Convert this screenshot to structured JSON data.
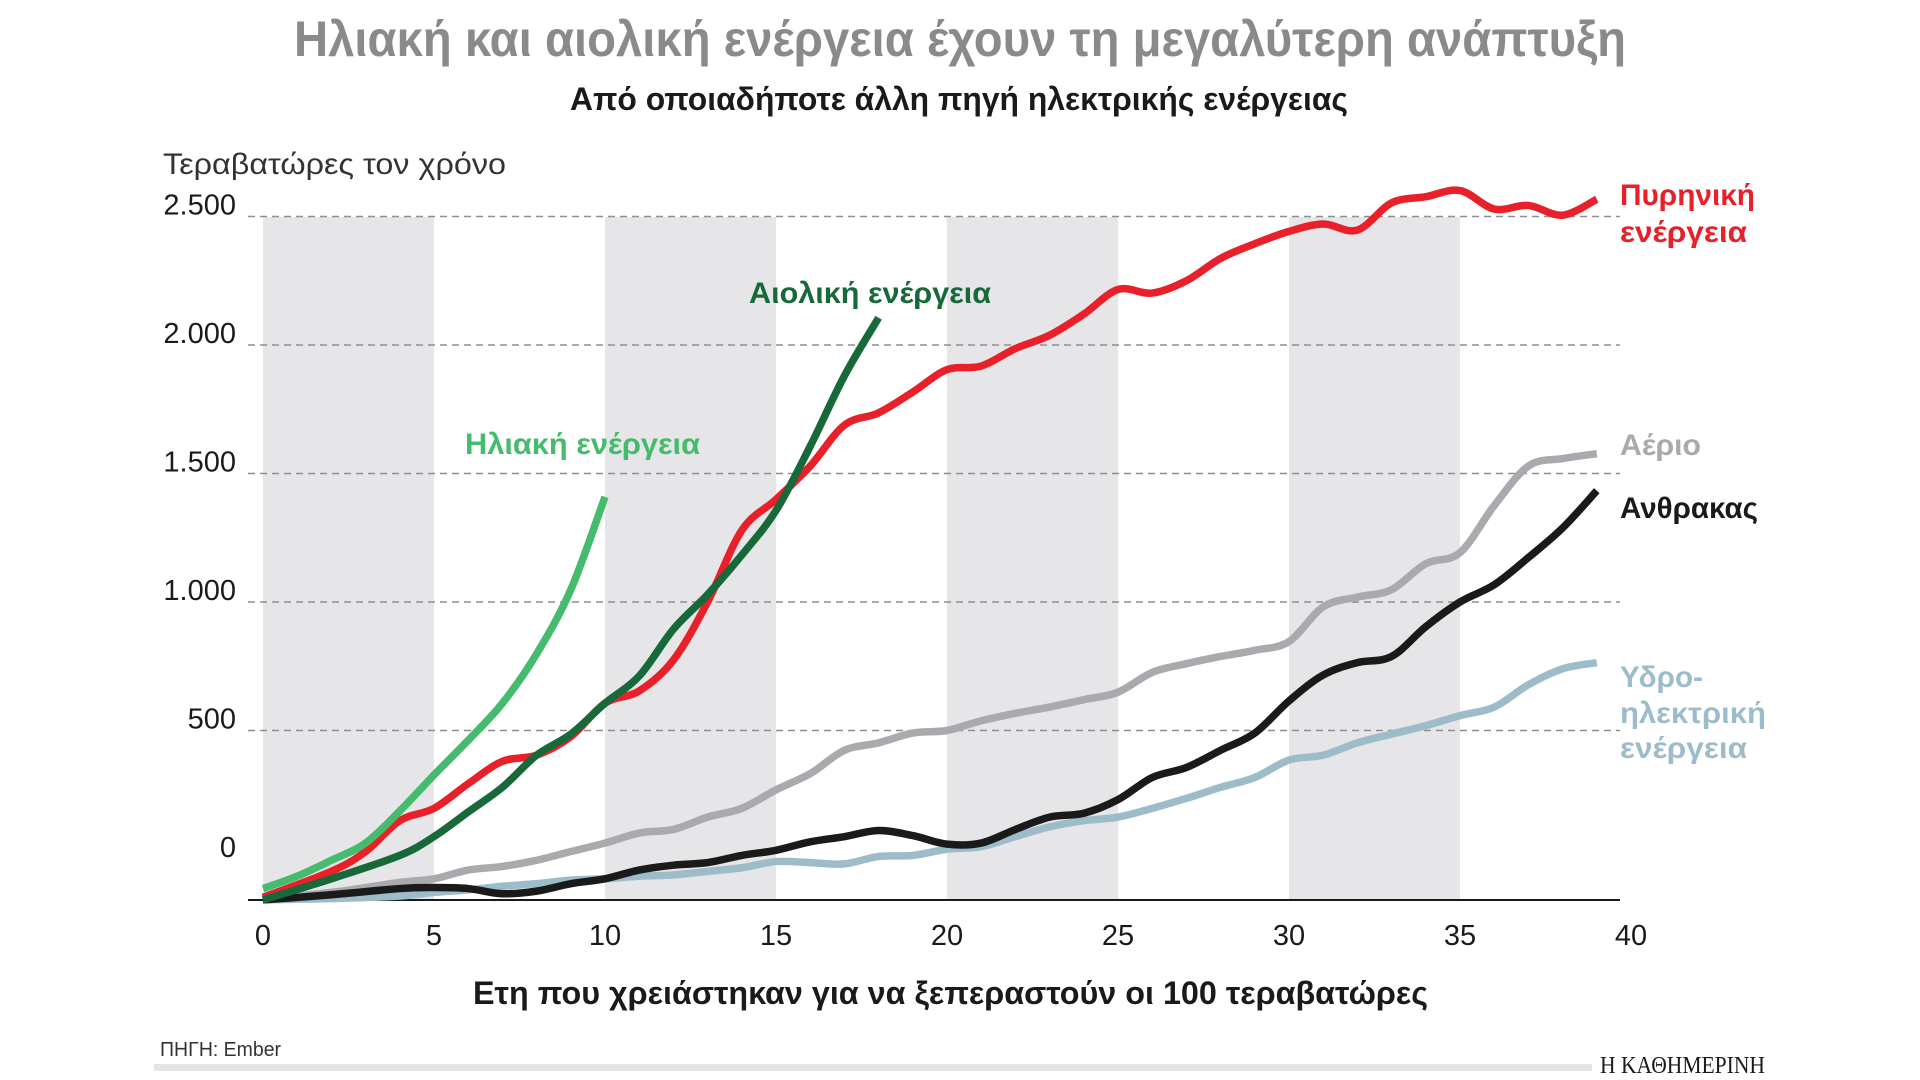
{
  "chart_data": {
    "type": "line",
    "title": "Ηλιακή και αιολική ενέργεια έχουν τη μεγαλύτερη ανάπτυξη",
    "subtitle": "Από οποιαδήποτε άλλη πηγή ηλεκτρικής ενέργειας",
    "ylabel": "Τεραβατώρες τον χρόνο",
    "xlabel": "Ετη που χρειάστηκαν για να ξεπεραστούν οι 100 τεραβατώρες",
    "xlim": [
      0,
      40
    ],
    "ylim": [
      -160,
      2600
    ],
    "x_ticks": [
      0,
      5,
      10,
      15,
      20,
      25,
      30,
      35,
      40
    ],
    "x_tick_labels": [
      "0",
      "5",
      "10",
      "15",
      "20",
      "25",
      "30",
      "35",
      "40"
    ],
    "y_ticks": [
      0,
      500,
      1000,
      1500,
      2000,
      2500
    ],
    "y_tick_labels": [
      "0",
      "500",
      "1.000",
      "1.500",
      "2.000",
      "2.500"
    ],
    "grid": "horizontal dashed",
    "shaded_bands": [
      [
        0,
        5
      ],
      [
        10,
        15
      ],
      [
        20,
        25
      ],
      [
        30,
        35
      ]
    ],
    "series": [
      {
        "key": "hydro",
        "name": "Υδροηλεκτρική ενέργεια",
        "label_lines": [
          "Υδρο-",
          "ηλεκτρική",
          "ενέργεια"
        ],
        "color": "#9dbcca",
        "x": [
          0,
          2,
          4,
          5,
          6,
          7,
          8,
          9,
          10,
          11,
          12,
          13,
          14,
          15,
          16,
          17,
          18,
          19,
          20,
          21,
          22,
          23,
          24,
          25,
          26,
          27,
          28,
          29,
          30,
          31,
          32,
          33,
          34,
          35,
          36,
          37,
          38,
          39
        ],
        "y": [
          -159,
          -154,
          -144,
          -130,
          -120,
          -106,
          -96,
          -82,
          -77,
          -67,
          -62,
          -48,
          -34,
          -10,
          -14,
          -19,
          10,
          14,
          38,
          48,
          87,
          125,
          149,
          163,
          197,
          236,
          279,
          317,
          385,
          404,
          452,
          486,
          519,
          558,
          591,
          678,
          740,
          764
        ]
      },
      {
        "key": "gas",
        "name": "Αέριο",
        "label_lines": [
          "Αέριο"
        ],
        "color": "#a9aaad",
        "x": [
          0,
          2,
          4,
          5,
          6,
          7,
          8,
          9,
          10,
          11,
          12,
          13,
          14,
          15,
          16,
          17,
          18,
          19,
          20,
          21,
          22,
          23,
          24,
          25,
          26,
          27,
          28,
          29,
          30,
          31,
          32,
          33,
          34,
          35,
          36,
          37,
          38,
          39
        ],
        "y": [
          -154,
          -130,
          -91,
          -77,
          -43,
          -29,
          -5,
          29,
          62,
          101,
          115,
          163,
          197,
          269,
          332,
          423,
          452,
          490,
          500,
          538,
          567,
          591,
          620,
          649,
          726,
          760,
          788,
          812,
          846,
          981,
          1019,
          1048,
          1149,
          1192,
          1375,
          1529,
          1558,
          1577
        ]
      },
      {
        "key": "coal",
        "name": "Ανθρακας",
        "label_lines": [
          "Ανθρακας"
        ],
        "color": "#1a1a1a",
        "x": [
          0,
          2,
          4,
          5,
          6,
          7,
          8,
          9,
          10,
          11,
          12,
          13,
          14,
          15,
          16,
          17,
          18,
          19,
          20,
          21,
          22,
          23,
          24,
          25,
          26,
          27,
          28,
          29,
          30,
          31,
          32,
          33,
          34,
          35,
          36,
          37,
          38,
          39
        ],
        "y": [
          -159,
          -139,
          -115,
          -111,
          -115,
          -135,
          -125,
          -96,
          -77,
          -43,
          -24,
          -14,
          14,
          34,
          67,
          87,
          111,
          91,
          58,
          62,
          115,
          163,
          178,
          231,
          317,
          356,
          423,
          490,
          615,
          716,
          764,
          788,
          904,
          1000,
          1067,
          1173,
          1288,
          1433
        ]
      },
      {
        "key": "nuclear",
        "name": "Πυρηνική ενέργεια",
        "label_lines": [
          "Πυρηνική",
          "ενέργεια"
        ],
        "color": "#e8202a",
        "x": [
          0,
          2,
          3,
          4,
          5,
          6,
          7,
          8,
          9,
          10,
          11,
          12,
          13,
          14,
          15,
          16,
          17,
          18,
          19,
          20,
          21,
          22,
          23,
          24,
          25,
          26,
          27,
          28,
          29,
          30,
          31,
          32,
          33,
          34,
          35,
          36,
          37,
          38,
          39
        ],
        "y": [
          -149,
          -48,
          29,
          149,
          197,
          293,
          380,
          404,
          476,
          606,
          654,
          774,
          1000,
          1279,
          1399,
          1529,
          1688,
          1736,
          1817,
          1904,
          1918,
          1986,
          2038,
          2120,
          2216,
          2202,
          2250,
          2337,
          2394,
          2442,
          2471,
          2447,
          2553,
          2577,
          2601,
          2529,
          2543,
          2505,
          2567
        ]
      },
      {
        "key": "wind",
        "name": "Αιολική ενέργεια",
        "label_lines": [
          "Αιολική ενέργεια"
        ],
        "color": "#17693a",
        "x": [
          0,
          2,
          4,
          5,
          6,
          7,
          8,
          9,
          10,
          11,
          12,
          13,
          14,
          15,
          16,
          17,
          18
        ],
        "y": [
          -159,
          -77,
          14,
          87,
          183,
          279,
          404,
          486,
          606,
          712,
          894,
          1029,
          1183,
          1356,
          1606,
          1880,
          2106
        ]
      },
      {
        "key": "solar",
        "name": "Ηλιακή ενέργεια",
        "label_lines": [
          "Ηλιακή ενέργεια"
        ],
        "color": "#45bb6d",
        "x": [
          0,
          1,
          2,
          3,
          4,
          5,
          6,
          7,
          8,
          9,
          10
        ],
        "y": [
          -115,
          -67,
          -5,
          62,
          187,
          327,
          462,
          606,
          798,
          1048,
          1409
        ]
      }
    ]
  },
  "footer": {
    "source": "ΠΗΓΗ: Ember",
    "publisher": "Η ΚΑΘΗΜΕΡΙΝΗ"
  }
}
